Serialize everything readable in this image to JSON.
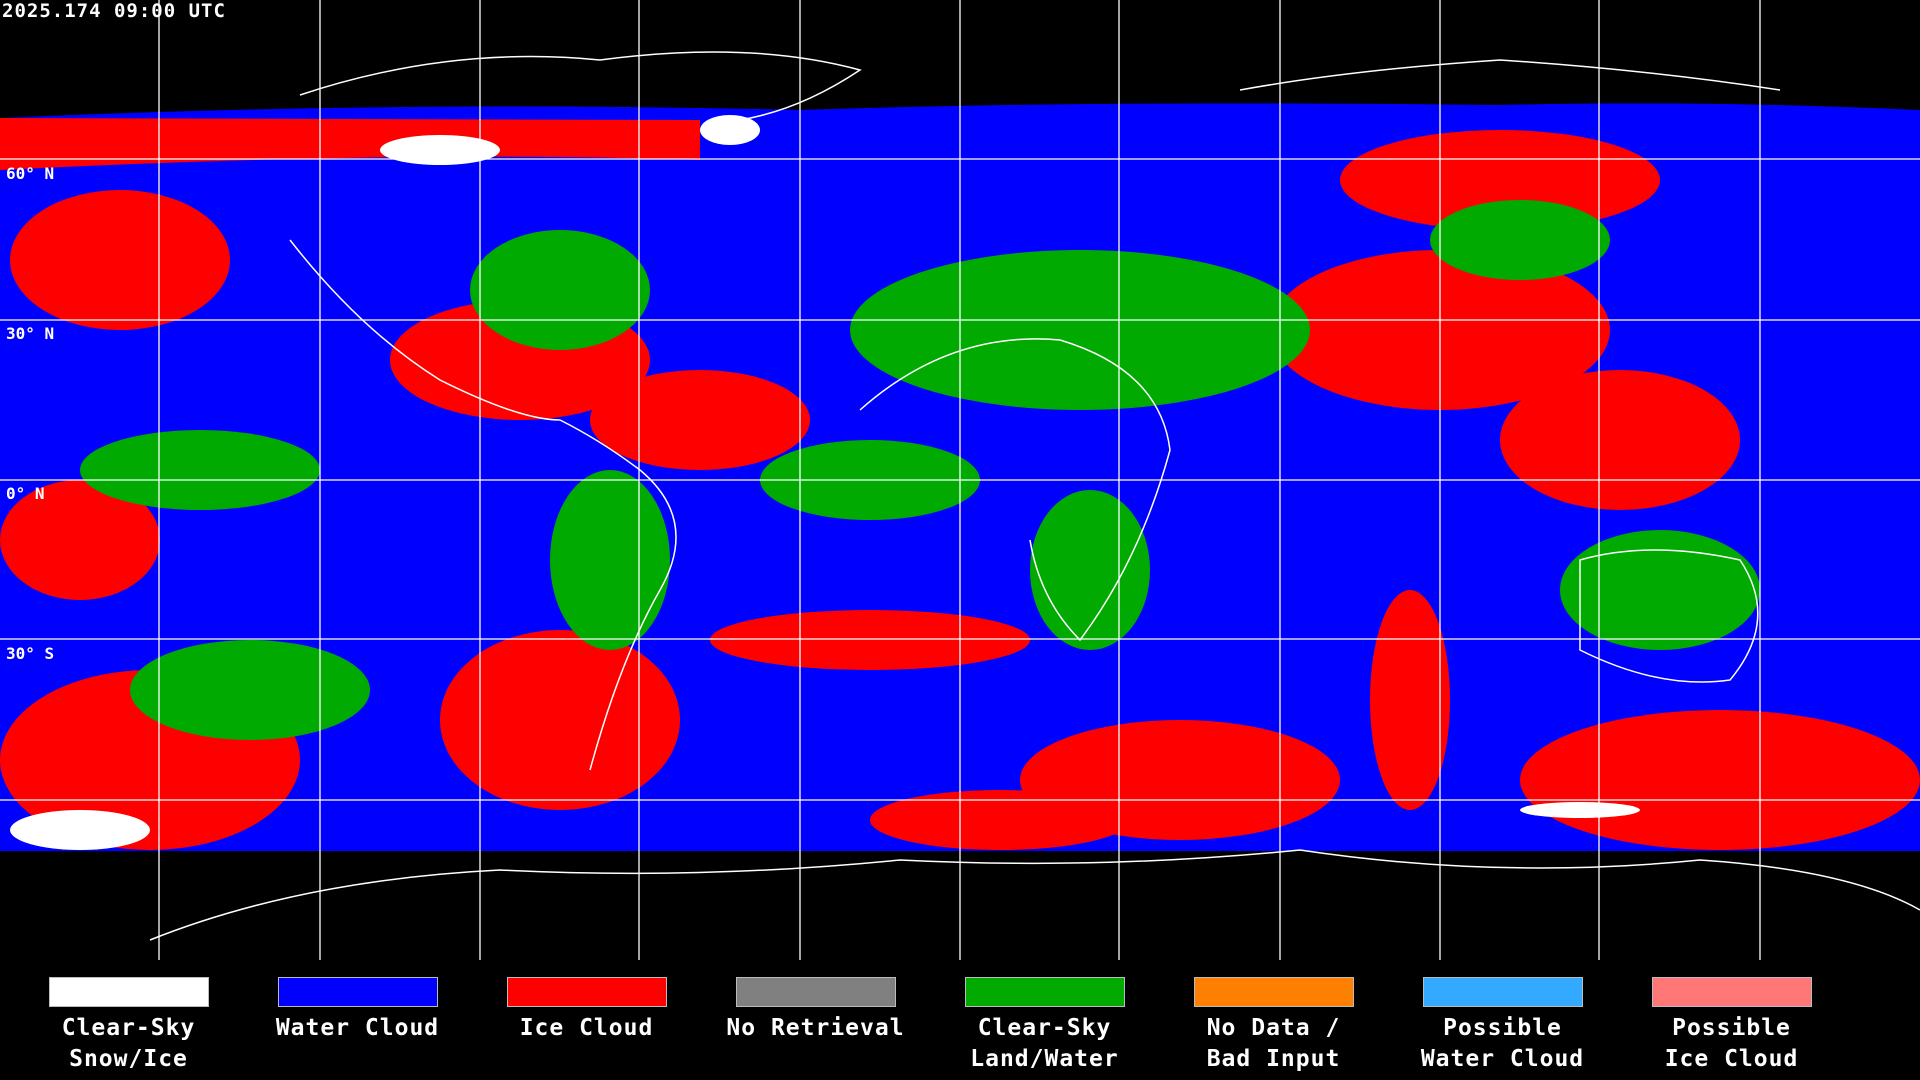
{
  "title": "2025.174 09:00 UTC",
  "latitude_labels": [
    "60° N",
    "30° N",
    "0° N",
    "30° S"
  ],
  "legend": [
    {
      "line1": "Clear-Sky",
      "line2": "Snow/Ice",
      "color": "#ffffff"
    },
    {
      "line1": "Water Cloud",
      "line2": "",
      "color": "#0000ff"
    },
    {
      "line1": "Ice Cloud",
      "line2": "",
      "color": "#ff0000"
    },
    {
      "line1": "No Retrieval",
      "line2": "",
      "color": "#808080"
    },
    {
      "line1": "Clear-Sky",
      "line2": "Land/Water",
      "color": "#00aa00"
    },
    {
      "line1": "No Data /",
      "line2": "Bad Input",
      "color": "#ff8000"
    },
    {
      "line1": "Possible",
      "line2": "Water Cloud",
      "color": "#33aaff"
    },
    {
      "line1": "Possible",
      "line2": "Ice Cloud",
      "color": "#ff7777"
    }
  ]
}
